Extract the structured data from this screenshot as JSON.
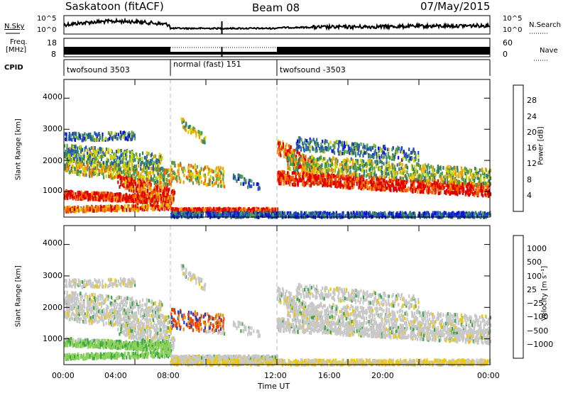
{
  "header": {
    "station": "Saskatoon (fitACF)",
    "beam": "Beam 08",
    "date": "07/May/2015"
  },
  "noise_panel": {
    "left_label": "N.Sky",
    "right_label": "N.Search",
    "left_ticks": [
      "10^5",
      "10^0"
    ],
    "right_ticks": [
      "10^5",
      "10^0"
    ]
  },
  "freq_panel": {
    "left_label_1": "Freq.",
    "left_label_2": "[MHz]",
    "right_label": "Nave",
    "left_ticks": [
      "18",
      "8"
    ],
    "right_ticks": [
      "60",
      "0"
    ]
  },
  "cpid_panel": {
    "label": "CPID",
    "modes": [
      {
        "name": "twofsound 3503",
        "start_hour": 0,
        "end_hour": 6
      },
      {
        "name": "normal (fast) 151",
        "start_hour": 6,
        "end_hour": 12
      },
      {
        "name": "twofsound -3503",
        "start_hour": 12,
        "end_hour": 24
      }
    ]
  },
  "chart_data": [
    {
      "type": "heatmap",
      "ylabel": "Slant Range [km]",
      "ylim": [
        180,
        4600
      ],
      "yticks": [
        "1000",
        "2000",
        "3000",
        "4000"
      ],
      "colorbar": {
        "label": "Power [dB]",
        "ticks": [
          "4",
          "8",
          "12",
          "16",
          "20",
          "24",
          "28"
        ],
        "colors": [
          "#1010e0",
          "#2050c0",
          "#307a70",
          "#4fa050",
          "#d4d400",
          "#f5a000",
          "#f06000",
          "#e00000"
        ]
      }
    },
    {
      "type": "heatmap",
      "xlabel": "Time UT",
      "ylabel": "Slant Range [km]",
      "ylim": [
        180,
        4600
      ],
      "yticks": [
        "1000",
        "2000",
        "3000",
        "4000"
      ],
      "xticks": [
        "00:00",
        "04:00",
        "08:00",
        "12:00",
        "16:00",
        "20:00",
        "00:00"
      ],
      "colorbar": {
        "label": "Velocity [m s⁻¹]",
        "ticks": [
          "1000",
          "500",
          "100",
          "25",
          "−25",
          "−100",
          "−500",
          "−1000"
        ],
        "colors": [
          "#1e3cc8",
          "#2d8a3c",
          "#3da84a",
          "#8cd25a",
          "#c8c8c8",
          "#f0c800",
          "#f08c00",
          "#f04000",
          "#e00000"
        ]
      }
    }
  ]
}
